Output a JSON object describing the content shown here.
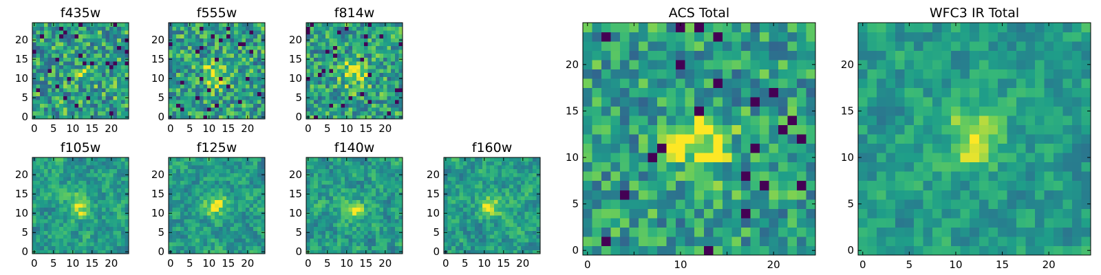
{
  "colormap": "viridis",
  "colors": {
    "min": "#440154",
    "low": "#31688e",
    "mid": "#21918c",
    "high": "#6ece58",
    "max": "#fde725"
  },
  "chart_data": [
    {
      "type": "heatmap",
      "title": "f435w",
      "grid": [
        25,
        25
      ],
      "xlim": [
        0,
        24
      ],
      "ylim": [
        0,
        24
      ],
      "xticks": [
        0,
        5,
        10,
        15,
        20
      ],
      "yticks": [
        0,
        5,
        10,
        15,
        20
      ],
      "source_center": [
        12,
        11
      ],
      "source_strength": 0.15,
      "noise": 0.62,
      "seed": 11,
      "smooth": 0
    },
    {
      "type": "heatmap",
      "title": "f555w",
      "grid": [
        25,
        25
      ],
      "xlim": [
        0,
        24
      ],
      "ylim": [
        0,
        24
      ],
      "xticks": [
        0,
        5,
        10,
        15,
        20
      ],
      "yticks": [
        0,
        5,
        10,
        15,
        20
      ],
      "source_center": [
        12,
        11
      ],
      "source_strength": 0.35,
      "noise": 0.6,
      "seed": 23,
      "smooth": 0
    },
    {
      "type": "heatmap",
      "title": "f814w",
      "grid": [
        25,
        25
      ],
      "xlim": [
        0,
        24
      ],
      "ylim": [
        0,
        24
      ],
      "xticks": [
        0,
        5,
        10,
        15,
        20
      ],
      "yticks": [
        0,
        5,
        10,
        15,
        20
      ],
      "source_center": [
        12,
        11
      ],
      "source_strength": 0.38,
      "noise": 0.58,
      "seed": 37,
      "smooth": 0
    },
    {
      "type": "heatmap",
      "title": "f105w",
      "grid": [
        25,
        25
      ],
      "xlim": [
        0,
        24
      ],
      "ylim": [
        0,
        24
      ],
      "xticks": [
        0,
        5,
        10,
        15,
        20
      ],
      "yticks": [
        0,
        5,
        10,
        15,
        20
      ],
      "source_center": [
        12,
        12
      ],
      "source_strength": 0.35,
      "noise": 0.55,
      "seed": 41,
      "smooth": 1
    },
    {
      "type": "heatmap",
      "title": "f125w",
      "grid": [
        25,
        25
      ],
      "xlim": [
        0,
        24
      ],
      "ylim": [
        0,
        24
      ],
      "xticks": [
        0,
        5,
        10,
        15,
        20
      ],
      "yticks": [
        0,
        5,
        10,
        15,
        20
      ],
      "source_center": [
        12,
        12
      ],
      "source_strength": 0.3,
      "noise": 0.55,
      "seed": 53,
      "smooth": 1
    },
    {
      "type": "heatmap",
      "title": "f140w",
      "grid": [
        25,
        25
      ],
      "xlim": [
        0,
        24
      ],
      "ylim": [
        0,
        24
      ],
      "xticks": [
        0,
        5,
        10,
        15,
        20
      ],
      "yticks": [
        0,
        5,
        10,
        15,
        20
      ],
      "source_center": [
        12,
        11
      ],
      "source_strength": 0.25,
      "noise": 0.58,
      "seed": 67,
      "smooth": 1
    },
    {
      "type": "heatmap",
      "title": "f160w",
      "grid": [
        25,
        25
      ],
      "xlim": [
        0,
        24
      ],
      "ylim": [
        0,
        24
      ],
      "xticks": [
        0,
        5,
        10,
        15,
        20
      ],
      "yticks": [
        0,
        5,
        10,
        15,
        20
      ],
      "source_center": [
        12,
        12
      ],
      "source_strength": 0.35,
      "noise": 0.55,
      "seed": 79,
      "smooth": 1
    },
    {
      "type": "heatmap",
      "title": "ACS Total",
      "grid": [
        25,
        25
      ],
      "xlim": [
        0,
        24
      ],
      "ylim": [
        0,
        24
      ],
      "xticks": [
        0,
        10,
        20
      ],
      "xticks_minor": [
        5,
        15
      ],
      "yticks": [
        0,
        5,
        10,
        15,
        20
      ],
      "source_center": [
        12,
        11.5
      ],
      "source_strength": 0.45,
      "noise": 0.55,
      "seed": 97,
      "smooth": 0
    },
    {
      "type": "heatmap",
      "title": "WFC3 IR Total",
      "grid": [
        25,
        25
      ],
      "xlim": [
        0,
        24
      ],
      "ylim": [
        0,
        24
      ],
      "xticks": [
        0,
        5,
        10,
        15,
        20
      ],
      "yticks": [
        0,
        5,
        10,
        15,
        20
      ],
      "source_center": [
        12,
        12
      ],
      "source_strength": 0.4,
      "noise": 0.5,
      "seed": 113,
      "smooth": 1
    }
  ]
}
